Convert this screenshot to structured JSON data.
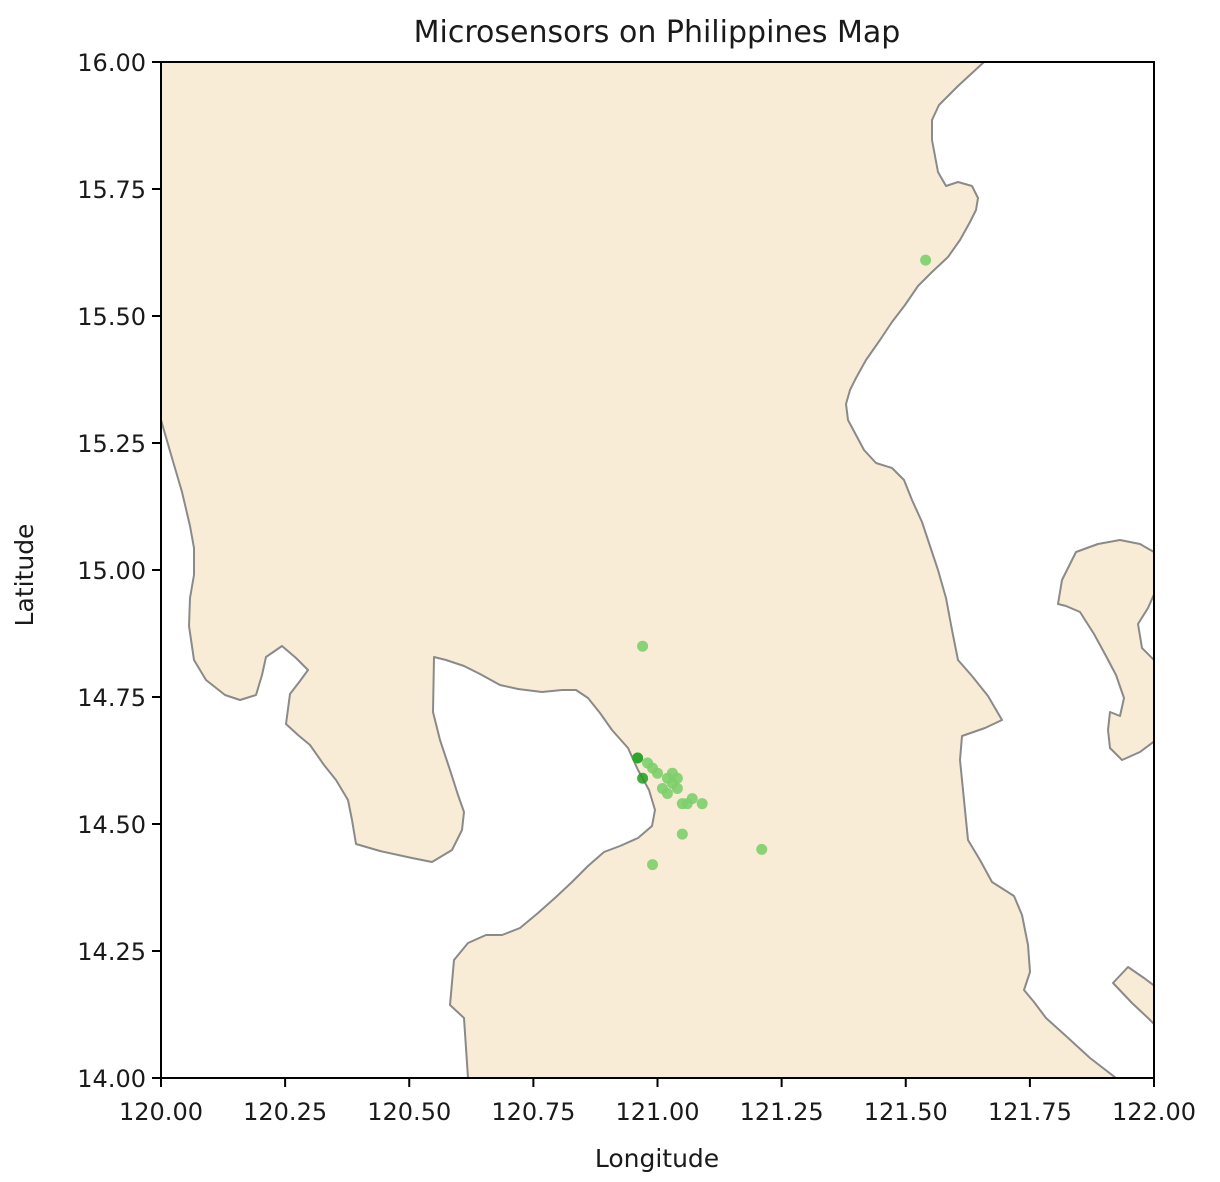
{
  "chart_data": {
    "type": "scatter",
    "title": "Microsensors on Philippines Map",
    "xlabel": "Longitude",
    "ylabel": "Latitude",
    "xlim": [
      120.0,
      122.0
    ],
    "ylim": [
      14.0,
      16.0
    ],
    "x_ticks": [
      "120.00",
      "120.25",
      "120.50",
      "120.75",
      "121.00",
      "121.25",
      "121.50",
      "121.75",
      "122.00"
    ],
    "y_ticks": [
      "14.00",
      "14.25",
      "14.50",
      "14.75",
      "15.00",
      "15.25",
      "15.50",
      "15.75",
      "16.00"
    ],
    "land_color": "#f8ecd6",
    "coast_color": "#8a8a8a",
    "marker_color": "#7ccf6a",
    "marker_color_dark": "#1f9e1f",
    "grid": false,
    "legend": "none",
    "series": [
      {
        "points": [
          {
            "x": 121.54,
            "y": 15.61
          },
          {
            "x": 120.97,
            "y": 14.85
          },
          {
            "x": 120.96,
            "y": 14.63
          },
          {
            "x": 120.98,
            "y": 14.62
          },
          {
            "x": 120.99,
            "y": 14.61
          },
          {
            "x": 121.0,
            "y": 14.6
          },
          {
            "x": 121.02,
            "y": 14.59
          },
          {
            "x": 121.03,
            "y": 14.6
          },
          {
            "x": 121.03,
            "y": 14.58
          },
          {
            "x": 121.04,
            "y": 14.59
          },
          {
            "x": 121.01,
            "y": 14.57
          },
          {
            "x": 121.04,
            "y": 14.57
          },
          {
            "x": 121.02,
            "y": 14.56
          },
          {
            "x": 121.05,
            "y": 14.54
          },
          {
            "x": 121.06,
            "y": 14.54
          },
          {
            "x": 121.07,
            "y": 14.55
          },
          {
            "x": 121.09,
            "y": 14.54
          },
          {
            "x": 121.05,
            "y": 14.48
          },
          {
            "x": 120.99,
            "y": 14.42
          },
          {
            "x": 121.21,
            "y": 14.45
          }
        ]
      },
      {
        "dark": true,
        "points": [
          {
            "x": 120.97,
            "y": 14.59
          },
          {
            "x": 120.96,
            "y": 14.63
          }
        ]
      }
    ]
  }
}
